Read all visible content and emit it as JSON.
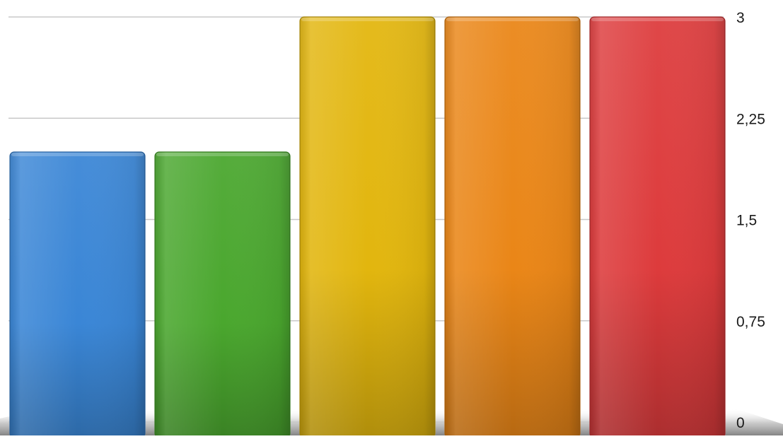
{
  "chart_data": {
    "type": "bar",
    "title": "",
    "xlabel": "",
    "ylabel": "",
    "categories": [
      "",
      "",
      "",
      "",
      ""
    ],
    "values": [
      2.0,
      2.0,
      3.0,
      3.0,
      3.0
    ],
    "colors": [
      "#3a86d6",
      "#4aa72e",
      "#e2b60e",
      "#ea8617",
      "#dd3b3c"
    ],
    "ylim": [
      0,
      3
    ],
    "yticks": [
      0,
      0.75,
      1.5,
      2.25,
      3
    ],
    "ytick_labels": [
      "0",
      "0,75",
      "1,5",
      "2,25",
      "3"
    ],
    "y_axis_side": "right",
    "grid": true,
    "legend": "none",
    "style": "3d-glossy"
  }
}
